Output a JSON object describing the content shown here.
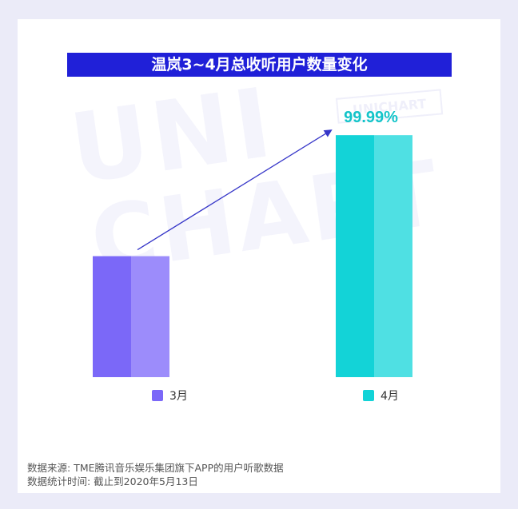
{
  "chart_data": {
    "type": "bar",
    "title": "温岚3~4月总收听用户数量变化",
    "categories": [
      "3月",
      "4月"
    ],
    "values": [
      100,
      199.99
    ],
    "data_labels": [
      "",
      "99.99%"
    ],
    "colors": [
      "#7b68f8",
      "#13d3d7"
    ],
    "xlabel": "",
    "ylabel": "",
    "ylim": [
      0,
      210
    ],
    "grid": false,
    "legend": "bottom",
    "annotation": "arrow from 3月 bar to 4月 bar indicating increase"
  },
  "watermark": {
    "line1": "UNI",
    "line2": "CHART",
    "badge": "UNICHART"
  },
  "footer": {
    "source": "数据来源: TME腾讯音乐娱乐集团旗下APP的用户听歌数据",
    "period": "数据统计时间: 截止到2020年5月13日"
  },
  "colors": {
    "background": "#ebebf8",
    "card": "#ffffff",
    "title_bar": "#2020d8",
    "arrow": "#3535c8",
    "label_teal": "#13c4c9"
  }
}
